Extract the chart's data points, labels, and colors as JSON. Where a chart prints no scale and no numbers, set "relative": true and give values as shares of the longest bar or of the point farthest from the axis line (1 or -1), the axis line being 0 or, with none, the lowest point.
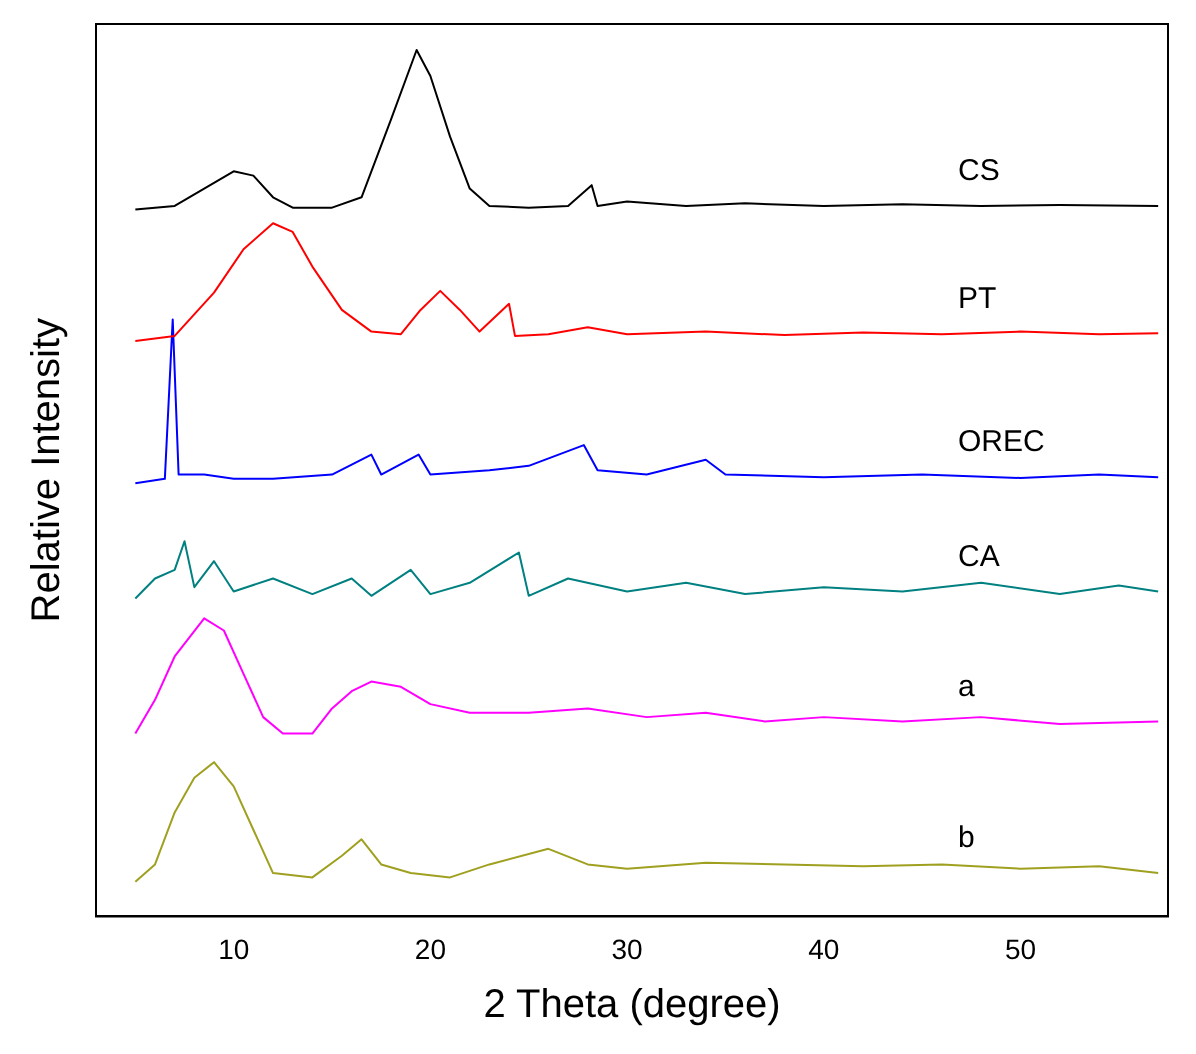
{
  "chart_data": {
    "type": "line",
    "xlabel": "2 Theta (degree)",
    "ylabel": "Relative Intensity",
    "relative": true,
    "xlim": [
      3,
      57.5
    ],
    "xticks": [
      10,
      20,
      30,
      40,
      50
    ],
    "grid": false,
    "legend": false,
    "marker": "none",
    "line_style": "solid",
    "series": [
      {
        "name": "CS",
        "color": "#000000",
        "x": [
          5,
          7,
          8.5,
          10,
          11,
          12,
          13,
          15,
          16.5,
          18,
          19.3,
          20,
          21,
          22,
          23,
          25,
          27,
          28.2,
          28.5,
          30,
          33,
          36,
          40,
          44,
          48,
          52,
          57
        ],
        "values": [
          0.816,
          0.82,
          0.84,
          0.86,
          0.855,
          0.83,
          0.818,
          0.818,
          0.83,
          0.92,
          1.0,
          0.97,
          0.9,
          0.84,
          0.82,
          0.818,
          0.82,
          0.844,
          0.82,
          0.825,
          0.82,
          0.823,
          0.82,
          0.822,
          0.82,
          0.821,
          0.82
        ]
      },
      {
        "name": "PT",
        "color": "#ff0000",
        "x": [
          5,
          7,
          9,
          10.5,
          12,
          13,
          14,
          15.5,
          17,
          18.5,
          19.5,
          20.5,
          21.5,
          22.5,
          24,
          24.3,
          26,
          28,
          30,
          34,
          38,
          42,
          46,
          50,
          54,
          57
        ],
        "values": [
          0.664,
          0.67,
          0.72,
          0.77,
          0.8,
          0.79,
          0.75,
          0.7,
          0.675,
          0.672,
          0.7,
          0.722,
          0.7,
          0.675,
          0.707,
          0.67,
          0.672,
          0.68,
          0.672,
          0.675,
          0.671,
          0.674,
          0.672,
          0.675,
          0.672,
          0.673
        ]
      },
      {
        "name": "OREC",
        "color": "#0000ff",
        "x": [
          5,
          6.5,
          6.9,
          7.2,
          8.5,
          10,
          12,
          15,
          17,
          17.5,
          19.4,
          20,
          23,
          25,
          27.8,
          28.5,
          31,
          34,
          35,
          40,
          45,
          50,
          54,
          57
        ],
        "values": [
          0.5,
          0.505,
          0.689,
          0.51,
          0.51,
          0.505,
          0.505,
          0.51,
          0.533,
          0.51,
          0.533,
          0.51,
          0.515,
          0.52,
          0.544,
          0.515,
          0.51,
          0.527,
          0.51,
          0.507,
          0.51,
          0.506,
          0.51,
          0.507
        ]
      },
      {
        "name": "CA",
        "color": "#008080",
        "x": [
          5,
          6,
          7,
          7.5,
          8,
          9,
          10,
          12,
          14,
          16,
          17,
          19,
          20,
          22,
          24.5,
          25,
          27,
          30,
          33,
          36,
          40,
          44,
          48,
          52,
          55,
          57
        ],
        "values": [
          0.367,
          0.39,
          0.4,
          0.433,
          0.38,
          0.41,
          0.375,
          0.39,
          0.372,
          0.39,
          0.37,
          0.4,
          0.372,
          0.385,
          0.42,
          0.37,
          0.39,
          0.375,
          0.385,
          0.372,
          0.38,
          0.375,
          0.385,
          0.372,
          0.382,
          0.375
        ]
      },
      {
        "name": "a",
        "color": "#ff00ff",
        "x": [
          5,
          6,
          7,
          8.5,
          9.5,
          10.5,
          11.5,
          12.5,
          14,
          15,
          16,
          17,
          18.5,
          20,
          22,
          25,
          28,
          31,
          34,
          37,
          40,
          44,
          48,
          52,
          57
        ],
        "values": [
          0.211,
          0.25,
          0.3,
          0.344,
          0.33,
          0.28,
          0.23,
          0.211,
          0.211,
          0.24,
          0.26,
          0.271,
          0.265,
          0.245,
          0.235,
          0.235,
          0.24,
          0.23,
          0.235,
          0.225,
          0.23,
          0.225,
          0.23,
          0.222,
          0.225
        ]
      },
      {
        "name": "b",
        "color": "#a0a020",
        "x": [
          5,
          6,
          7,
          8,
          9,
          10,
          11,
          12,
          14,
          15.5,
          16.5,
          17.5,
          19,
          21,
          23,
          26,
          28,
          30,
          34,
          38,
          42,
          46,
          50,
          54,
          57
        ],
        "values": [
          0.04,
          0.06,
          0.12,
          0.16,
          0.178,
          0.15,
          0.1,
          0.05,
          0.045,
          0.07,
          0.089,
          0.06,
          0.05,
          0.045,
          0.06,
          0.078,
          0.06,
          0.055,
          0.062,
          0.06,
          0.058,
          0.06,
          0.055,
          0.058,
          0.05
        ]
      }
    ]
  }
}
